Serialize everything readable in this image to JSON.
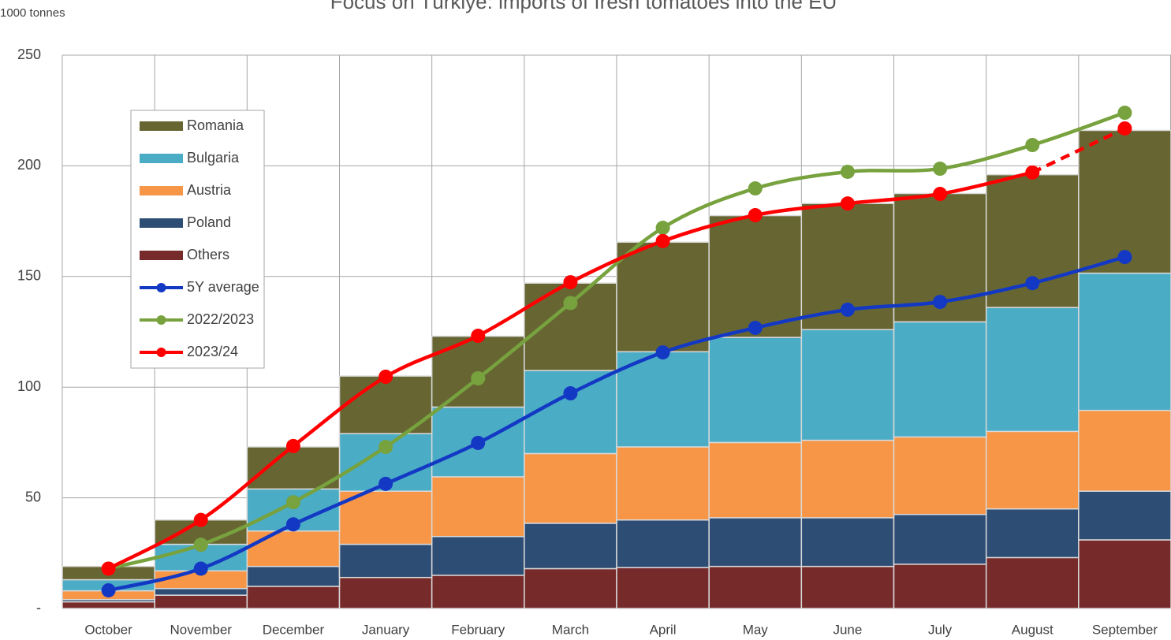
{
  "chart_data": {
    "type": "bar",
    "stacked": true,
    "title": "Focus on Türkiye: imports of fresh tomatoes into the EU",
    "y_label": "1000 tonnes",
    "categories": [
      "October",
      "November",
      "December",
      "January",
      "February",
      "March",
      "April",
      "May",
      "June",
      "July",
      "August",
      "September"
    ],
    "ylim": [
      0,
      250
    ],
    "yticks": [
      {
        "value": 0,
        "label": "-"
      },
      50,
      100,
      150,
      200,
      250
    ],
    "grid": true,
    "legend": "upper left",
    "series": [
      {
        "name": "Others",
        "type": "bar",
        "color": "#772a2a",
        "values": [
          3,
          6,
          10,
          14,
          15,
          18,
          18.5,
          19,
          19,
          20,
          23,
          31
        ]
      },
      {
        "name": "Poland",
        "type": "bar",
        "color": "#2e4d75",
        "values": [
          1,
          3,
          9,
          15,
          17.5,
          20.5,
          21.5,
          22,
          22,
          22.5,
          22,
          22
        ]
      },
      {
        "name": "Austria",
        "type": "bar",
        "color": "#f79646",
        "values": [
          4,
          8,
          16,
          24,
          27,
          31.5,
          33,
          34,
          35,
          35,
          35,
          36.5
        ]
      },
      {
        "name": "Bulgaria",
        "type": "bar",
        "color": "#4bacc6",
        "values": [
          5,
          12,
          19,
          26,
          31.5,
          37.5,
          43,
          47.5,
          50,
          52,
          56,
          62
        ]
      },
      {
        "name": "Romania",
        "type": "bar",
        "color": "#676633",
        "values": [
          6,
          11,
          19,
          26,
          32,
          39.5,
          49.5,
          55,
          57,
          58,
          60,
          64.5
        ]
      },
      {
        "name": "5Y average",
        "type": "line",
        "color": "#1339c4",
        "values": [
          8.2,
          18,
          38,
          56.3,
          74.8,
          97.2,
          115.7,
          126.8,
          135,
          138.5,
          147,
          158.8
        ]
      },
      {
        "name": "2022/2023",
        "type": "line",
        "color": "#77a23e",
        "values": [
          18,
          28.8,
          48,
          73,
          104,
          138,
          172,
          189.8,
          197.3,
          198.7,
          209.4,
          224
        ]
      },
      {
        "name": "2023/24",
        "type": "line",
        "color": "#ff0000",
        "last_segment_dashed": true,
        "values": [
          18,
          40,
          73.4,
          104.7,
          123.2,
          147.4,
          166,
          177.7,
          183,
          187.3,
          197,
          216.9
        ]
      }
    ]
  }
}
